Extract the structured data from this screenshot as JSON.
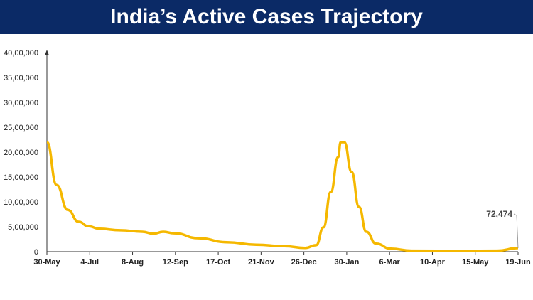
{
  "header": {
    "title": "India’s Active Cases Trajectory"
  },
  "chart_data": {
    "type": "line",
    "title": "India’s Active Cases Trajectory",
    "xlabel": "",
    "ylabel": "",
    "ylim": [
      0,
      4000000
    ],
    "xlim": [
      "2021-05-30",
      "2022-06-19"
    ],
    "yticks": [
      "0",
      "5,00,000",
      "10,00,000",
      "15,00,000",
      "20,00,000",
      "25,00,000",
      "30,00,000",
      "35,00,000",
      "40,00,000"
    ],
    "xticks": [
      "30-May",
      "4-Jul",
      "8-Aug",
      "12-Sep",
      "17-Oct",
      "21-Nov",
      "26-Dec",
      "30-Jan",
      "6-Mar",
      "10-Apr",
      "15-May",
      "19-Jun"
    ],
    "grid": false,
    "line_color": "#f5b800",
    "annotation": {
      "label": "72,474",
      "x": "2022-06-19",
      "y": 72474
    },
    "series": [
      {
        "x": [
          "2021-05-30",
          "2021-06-07",
          "2021-06-16",
          "2021-06-25",
          "2021-07-03",
          "2021-07-12",
          "2021-07-29",
          "2021-08-16",
          "2021-08-25",
          "2021-09-02",
          "2021-09-11",
          "2021-10-01",
          "2021-10-24",
          "2021-11-17",
          "2021-12-10",
          "2021-12-27",
          "2022-01-05",
          "2022-01-11",
          "2022-01-17",
          "2022-01-23",
          "2022-01-25",
          "2022-01-28",
          "2022-02-03",
          "2022-02-09",
          "2022-02-15",
          "2022-02-23",
          "2022-03-07",
          "2022-03-24",
          "2022-05-04",
          "2022-06-02",
          "2022-06-19"
        ],
        "y": [
          2200000,
          1340000,
          840000,
          600000,
          510000,
          460000,
          430000,
          400000,
          360000,
          400000,
          370000,
          270000,
          190000,
          140000,
          110000,
          75000,
          130000,
          490000,
          1200000,
          1900000,
          2200000,
          2200000,
          1600000,
          900000,
          400000,
          160000,
          60000,
          20000,
          17000,
          20000,
          72474
        ]
      }
    ]
  }
}
